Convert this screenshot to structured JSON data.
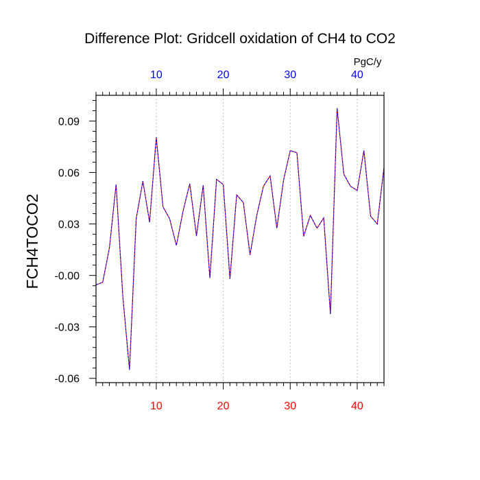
{
  "colors": {
    "line_red": "#ff0000",
    "line_blue": "#0000ff",
    "bottom_ticks": "#ff0000",
    "top_ticks": "#0000ff",
    "grid": "#b0b0b0"
  },
  "chart_data": {
    "type": "line",
    "title": "Difference Plot: Gridcell oxidation of CH4 to CO2",
    "units": "PgC/y",
    "ylabel": "FCH4TOCO2",
    "xlabel": "",
    "xlim": [
      1,
      44
    ],
    "ylim": [
      -0.0625,
      0.105
    ],
    "xticks": [
      10,
      20,
      30,
      40
    ],
    "xtick_labels": [
      "10",
      "20",
      "30",
      "40"
    ],
    "yticks": [
      -0.06,
      -0.03,
      0.0,
      0.03,
      0.06,
      0.09
    ],
    "ytick_labels": [
      "-0.06",
      "-0.03",
      "-0.00",
      "0.03",
      "0.06",
      "0.09"
    ],
    "grid": "vertical dashed at major x ticks",
    "x": [
      1,
      2,
      3,
      4,
      5,
      6,
      7,
      8,
      9,
      10,
      11,
      12,
      13,
      14,
      15,
      16,
      17,
      18,
      19,
      20,
      21,
      22,
      23,
      24,
      25,
      26,
      27,
      28,
      29,
      30,
      31,
      32,
      33,
      34,
      35,
      36,
      37,
      38,
      39,
      40,
      41,
      42,
      43,
      44
    ],
    "series": [
      {
        "values": [
          -0.0055,
          -0.004,
          0.016,
          0.053,
          -0.012,
          -0.055,
          0.033,
          0.055,
          0.031,
          0.0805,
          0.04,
          0.033,
          0.0175,
          0.0375,
          0.0535,
          0.023,
          0.0525,
          -0.0015,
          0.056,
          0.053,
          -0.002,
          0.047,
          0.0425,
          0.012,
          0.035,
          0.052,
          0.058,
          0.0275,
          0.0555,
          0.0728,
          0.0715,
          0.0228,
          0.035,
          0.0275,
          0.0335,
          -0.0225,
          0.0975,
          0.059,
          0.052,
          0.0495,
          0.0728,
          0.0345,
          0.03,
          0.063
        ]
      }
    ]
  }
}
